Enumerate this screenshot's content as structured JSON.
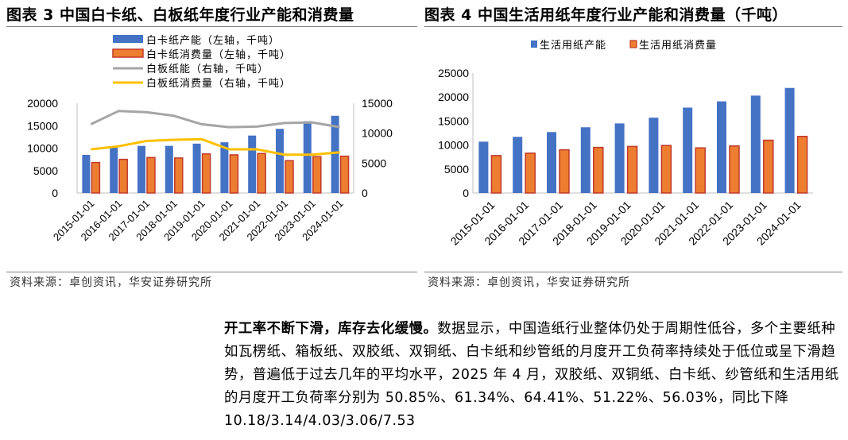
{
  "figure3": {
    "title": "图表 3 中国白卡纸、白板纸年度行业产能和消费量",
    "source": "资料来源：卓创资讯，华安证券研究所"
  },
  "figure4": {
    "title": "图表 4 中国生活用纸年度行业产能和消费量（千吨）",
    "source": "资料来源：卓创资讯，华安证券研究所"
  },
  "paragraph": {
    "lead": "开工率不断下滑，库存去化缓慢。",
    "body": "数据显示，中国造纸行业整体仍处于周期性低谷，多个主要纸种如瓦楞纸、箱板纸、双胶纸、双铜纸、白卡纸和纱管纸的月度开工负荷率持续处于低位或呈下滑趋势，普遍低于过去几年的平均水平，2025 年 4 月，双胶纸、双铜纸、白卡纸、纱管纸和生活用纸的月度开工负荷率分别为 50.85%、61.34%、64.41%、51.22%、56.03%，同比下降 10.18/3.14/4.03/3.06/7.53"
  },
  "colors": {
    "blue": "#4472c4",
    "orange": "#ed7d31",
    "orange_edge": "#c0392b",
    "gray": "#a5a5a5",
    "yellow": "#ffc000"
  },
  "chart_data": [
    {
      "type": "bar",
      "categories": [
        "2015-01-01",
        "2016-01-01",
        "2017-01-01",
        "2018-01-01",
        "2019-01-01",
        "2020-01-01",
        "2021-01-01",
        "2022-01-01",
        "2023-01-01",
        "2024-01-01"
      ],
      "ylim": [
        0,
        20000
      ],
      "yticks": [
        "0",
        "5000",
        "10000",
        "15000",
        "20000"
      ],
      "y2lim": [
        0,
        15000
      ],
      "y2ticks": [
        "0",
        "5000",
        "10000",
        "15000"
      ],
      "legend_position": "top",
      "series": [
        {
          "name": "白卡纸产能（左轴，千吨）",
          "kind": "bar",
          "axis": "left",
          "color": "#4472c4",
          "values": [
            8500,
            10200,
            10500,
            10500,
            11000,
            11300,
            12800,
            14300,
            16000,
            17200
          ]
        },
        {
          "name": "白卡纸消费量（左轴，千吨）",
          "kind": "bar",
          "axis": "left",
          "color": "#ed7d31",
          "values": [
            6800,
            7500,
            7900,
            7800,
            8700,
            8500,
            8800,
            7200,
            8100,
            8200
          ]
        },
        {
          "name": "白板纸能（右轴，千吨）",
          "kind": "line",
          "axis": "right",
          "color": "#a5a5a5",
          "values": [
            11500,
            13700,
            13500,
            12900,
            11500,
            11000,
            11100,
            11700,
            11800,
            11000
          ]
        },
        {
          "name": "白板纸消费量（右轴，千吨）",
          "kind": "line",
          "axis": "right",
          "color": "#ffc000",
          "values": [
            7300,
            7800,
            8700,
            8900,
            9000,
            7300,
            7300,
            6400,
            6400,
            6800
          ]
        }
      ]
    },
    {
      "type": "bar",
      "categories": [
        "2015-01-01",
        "2016-01-01",
        "2017-01-01",
        "2018-01-01",
        "2019-01-01",
        "2020-01-01",
        "2021-01-01",
        "2022-01-01",
        "2023-01-01",
        "2024-01-01"
      ],
      "ylim": [
        0,
        25000
      ],
      "yticks": [
        "0",
        "5000",
        "10000",
        "15000",
        "20000",
        "25000"
      ],
      "legend_position": "top",
      "series": [
        {
          "name": "生活用纸产能",
          "kind": "bar",
          "color": "#4472c4",
          "values": [
            10700,
            11700,
            12700,
            13700,
            14500,
            15700,
            17800,
            19100,
            20300,
            21900
          ]
        },
        {
          "name": "生活用纸消费量",
          "kind": "bar",
          "color": "#ed7d31",
          "values": [
            7800,
            8300,
            9000,
            9500,
            9700,
            9900,
            9400,
            9800,
            11000,
            11800
          ]
        }
      ]
    }
  ]
}
